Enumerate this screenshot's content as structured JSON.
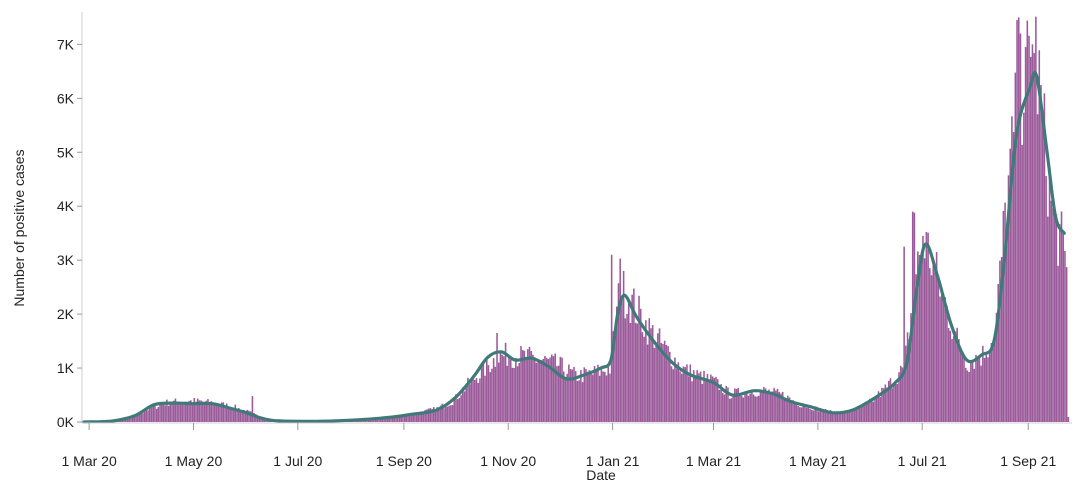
{
  "chart_data": {
    "type": "bar",
    "title": "",
    "xlabel": "Date",
    "ylabel": "Number of positive cases",
    "x_range": [
      "2020-02-27",
      "2021-09-26"
    ],
    "ylim": [
      0,
      7600
    ],
    "grid": false,
    "legend": "none",
    "y_ticks": [
      {
        "value": 0,
        "label": "0K"
      },
      {
        "value": 1000,
        "label": "1K"
      },
      {
        "value": 2000,
        "label": "2K"
      },
      {
        "value": 3000,
        "label": "3K"
      },
      {
        "value": 4000,
        "label": "4K"
      },
      {
        "value": 5000,
        "label": "5K"
      },
      {
        "value": 6000,
        "label": "6K"
      },
      {
        "value": 7000,
        "label": "7K"
      }
    ],
    "x_ticks": [
      {
        "date": "2020-03-01",
        "label": "1 Mar 20"
      },
      {
        "date": "2020-05-01",
        "label": "1 May 20"
      },
      {
        "date": "2020-07-01",
        "label": "1 Jul 20"
      },
      {
        "date": "2020-09-01",
        "label": "1 Sep 20"
      },
      {
        "date": "2020-11-01",
        "label": "1 Nov 20"
      },
      {
        "date": "2021-01-01",
        "label": "1 Jan 21"
      },
      {
        "date": "2021-03-01",
        "label": "1 Mar 21"
      },
      {
        "date": "2021-05-01",
        "label": "1 May 21"
      },
      {
        "date": "2021-07-01",
        "label": "1 Jul 21"
      },
      {
        "date": "2021-09-01",
        "label": "1 Sep 21"
      }
    ],
    "colors": {
      "bars": "#9b5b9b",
      "line": "#3f7a79",
      "axis": "#cfcfcf"
    },
    "series": [
      {
        "type": "bar",
        "x_start": "2020-02-27",
        "interval": "day",
        "profile": [
          [
            "2020-02-27",
            0
          ],
          [
            "2020-03-15",
            10
          ],
          [
            "2020-03-25",
            80
          ],
          [
            "2020-04-05",
            250
          ],
          [
            "2020-04-15",
            360
          ],
          [
            "2020-04-25",
            390
          ],
          [
            "2020-05-05",
            380
          ],
          [
            "2020-05-15",
            340
          ],
          [
            "2020-05-25",
            270
          ],
          [
            "2020-06-05",
            150
          ],
          [
            "2020-06-12",
            60
          ],
          [
            "2020-06-20",
            30
          ],
          [
            "2020-07-15",
            20
          ],
          [
            "2020-08-01",
            25
          ],
          [
            "2020-08-10",
            60
          ],
          [
            "2020-08-25",
            90
          ],
          [
            "2020-09-01",
            120
          ],
          [
            "2020-09-10",
            180
          ],
          [
            "2020-09-20",
            250
          ],
          [
            "2020-09-30",
            400
          ],
          [
            "2020-10-05",
            600
          ],
          [
            "2020-10-15",
            900
          ],
          [
            "2020-10-25",
            1200
          ],
          [
            "2020-11-01",
            1250
          ],
          [
            "2020-11-10",
            1200
          ],
          [
            "2020-11-20",
            1150
          ],
          [
            "2020-11-30",
            1050
          ],
          [
            "2020-12-10",
            850
          ],
          [
            "2020-12-20",
            900
          ],
          [
            "2020-12-30",
            1000
          ],
          [
            "2021-01-05",
            2500
          ],
          [
            "2021-01-12",
            2200
          ],
          [
            "2021-01-20",
            1800
          ],
          [
            "2021-01-30",
            1400
          ],
          [
            "2021-02-10",
            1000
          ],
          [
            "2021-02-20",
            850
          ],
          [
            "2021-03-01",
            750
          ],
          [
            "2021-03-10",
            520
          ],
          [
            "2021-03-20",
            560
          ],
          [
            "2021-03-30",
            580
          ],
          [
            "2021-04-10",
            500
          ],
          [
            "2021-04-20",
            330
          ],
          [
            "2021-05-01",
            240
          ],
          [
            "2021-05-10",
            170
          ],
          [
            "2021-05-20",
            200
          ],
          [
            "2021-06-01",
            380
          ],
          [
            "2021-06-10",
            650
          ],
          [
            "2021-06-20",
            1000
          ],
          [
            "2021-06-27",
            2700
          ],
          [
            "2021-07-01",
            3450
          ],
          [
            "2021-07-06",
            3000
          ],
          [
            "2021-07-12",
            2400
          ],
          [
            "2021-07-20",
            1600
          ],
          [
            "2021-07-27",
            1100
          ],
          [
            "2021-08-05",
            1250
          ],
          [
            "2021-08-12",
            1600
          ],
          [
            "2021-08-18",
            3800
          ],
          [
            "2021-08-24",
            5500
          ],
          [
            "2021-09-01",
            6600
          ],
          [
            "2021-09-05",
            6800
          ],
          [
            "2021-09-10",
            5200
          ],
          [
            "2021-09-15",
            3800
          ],
          [
            "2021-09-20",
            3300
          ],
          [
            "2021-09-23",
            2800
          ],
          [
            "2021-09-24",
            100
          ]
        ],
        "spikes": [
          [
            "2020-06-04",
            480
          ],
          [
            "2020-10-25",
            1650
          ],
          [
            "2020-12-31",
            3100
          ],
          [
            "2021-01-05",
            3030
          ],
          [
            "2021-06-20",
            3250
          ],
          [
            "2021-06-25",
            3900
          ],
          [
            "2021-06-26",
            3880
          ],
          [
            "2021-08-25",
            7450
          ],
          [
            "2021-08-26",
            7500
          ],
          [
            "2021-08-27",
            7200
          ],
          [
            "2021-08-30",
            6950
          ],
          [
            "2021-09-03",
            7000
          ]
        ]
      },
      {
        "type": "line",
        "smoothing": "7-day average",
        "points": [
          [
            "2020-02-27",
            0
          ],
          [
            "2020-03-15",
            20
          ],
          [
            "2020-03-28",
            120
          ],
          [
            "2020-04-08",
            320
          ],
          [
            "2020-04-20",
            350
          ],
          [
            "2020-05-01",
            340
          ],
          [
            "2020-05-12",
            340
          ],
          [
            "2020-05-22",
            260
          ],
          [
            "2020-06-01",
            170
          ],
          [
            "2020-06-10",
            70
          ],
          [
            "2020-06-20",
            20
          ],
          [
            "2020-07-15",
            15
          ],
          [
            "2020-08-05",
            40
          ],
          [
            "2020-08-25",
            90
          ],
          [
            "2020-09-05",
            140
          ],
          [
            "2020-09-20",
            220
          ],
          [
            "2020-10-01",
            450
          ],
          [
            "2020-10-12",
            850
          ],
          [
            "2020-10-20",
            1200
          ],
          [
            "2020-10-28",
            1300
          ],
          [
            "2020-11-05",
            1150
          ],
          [
            "2020-11-15",
            1180
          ],
          [
            "2020-11-25",
            1020
          ],
          [
            "2020-12-05",
            800
          ],
          [
            "2020-12-15",
            870
          ],
          [
            "2020-12-25",
            1000
          ],
          [
            "2020-12-31",
            1150
          ],
          [
            "2021-01-04",
            2000
          ],
          [
            "2021-01-08",
            2350
          ],
          [
            "2021-01-15",
            1950
          ],
          [
            "2021-01-25",
            1500
          ],
          [
            "2021-02-05",
            1100
          ],
          [
            "2021-02-15",
            880
          ],
          [
            "2021-03-01",
            730
          ],
          [
            "2021-03-12",
            500
          ],
          [
            "2021-03-25",
            580
          ],
          [
            "2021-04-05",
            520
          ],
          [
            "2021-04-15",
            380
          ],
          [
            "2021-04-28",
            270
          ],
          [
            "2021-05-10",
            170
          ],
          [
            "2021-05-22",
            230
          ],
          [
            "2021-06-05",
            480
          ],
          [
            "2021-06-15",
            720
          ],
          [
            "2021-06-22",
            1100
          ],
          [
            "2021-06-28",
            2500
          ],
          [
            "2021-07-03",
            3300
          ],
          [
            "2021-07-10",
            2700
          ],
          [
            "2021-07-18",
            1800
          ],
          [
            "2021-07-27",
            1150
          ],
          [
            "2021-08-05",
            1250
          ],
          [
            "2021-08-12",
            1500
          ],
          [
            "2021-08-18",
            3000
          ],
          [
            "2021-08-25",
            5300
          ],
          [
            "2021-09-02",
            6200
          ],
          [
            "2021-09-06",
            6400
          ],
          [
            "2021-09-12",
            5000
          ],
          [
            "2021-09-17",
            3800
          ],
          [
            "2021-09-22",
            3500
          ]
        ]
      }
    ]
  }
}
